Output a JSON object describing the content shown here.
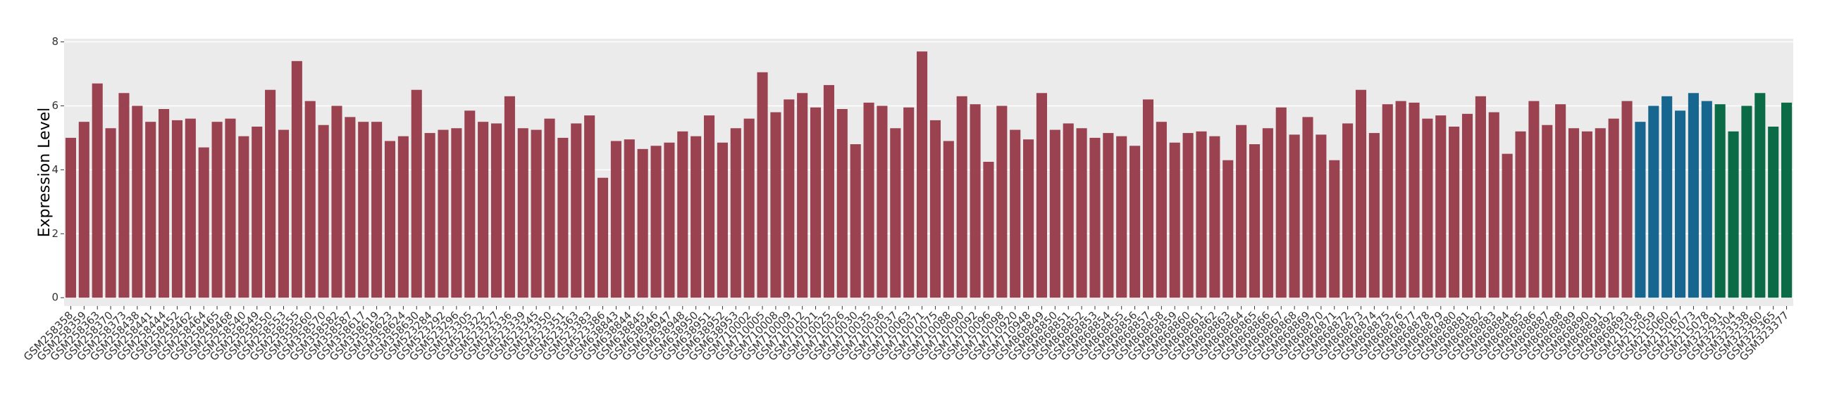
{
  "chart_data": {
    "type": "bar",
    "y_label": "Expression Level",
    "categories": [
      "GSM258358",
      "GSM258359",
      "GSM258363",
      "GSM258370",
      "GSM258373",
      "GSM258438",
      "GSM258441",
      "GSM258444",
      "GSM258452",
      "GSM258462",
      "GSM258464",
      "GSM258465",
      "GSM258468",
      "GSM258540",
      "GSM258549",
      "GSM258550",
      "GSM258553",
      "GSM258555",
      "GSM358560",
      "GSM358570",
      "GSM358582",
      "GSM358587",
      "GSM358617",
      "GSM358619",
      "GSM358623",
      "GSM358624",
      "GSM358630",
      "GSM523284",
      "GSM523292",
      "GSM523296",
      "GSM523305",
      "GSM523322",
      "GSM523327",
      "GSM523336",
      "GSM523339",
      "GSM523345",
      "GSM523350",
      "GSM523351",
      "GSM523363",
      "GSM523383",
      "GSM523386",
      "GSM638843",
      "GSM638844",
      "GSM638845",
      "GSM638946",
      "GSM638947",
      "GSM638948",
      "GSM638950",
      "GSM638951",
      "GSM638952",
      "GSM638953",
      "GSM710002",
      "GSM710005",
      "GSM710008",
      "GSM710009",
      "GSM710012",
      "GSM710021",
      "GSM710025",
      "GSM710026",
      "GSM710030",
      "GSM710035",
      "GSM710036",
      "GSM710037",
      "GSM710063",
      "GSM710071",
      "GSM710075",
      "GSM710088",
      "GSM710090",
      "GSM710092",
      "GSM710096",
      "GSM710098",
      "GSM710920",
      "GSM710948",
      "GSM868849",
      "GSM868850",
      "GSM868851",
      "GSM868852",
      "GSM868853",
      "GSM868854",
      "GSM868855",
      "GSM868856",
      "GSM868857",
      "GSM868858",
      "GSM868859",
      "GSM868860",
      "GSM868861",
      "GSM868862",
      "GSM868863",
      "GSM868864",
      "GSM868865",
      "GSM868866",
      "GSM868867",
      "GSM868868",
      "GSM868869",
      "GSM868870",
      "GSM868871",
      "GSM868872",
      "GSM868873",
      "GSM868874",
      "GSM868875",
      "GSM868876",
      "GSM868877",
      "GSM868878",
      "GSM868879",
      "GSM868880",
      "GSM868881",
      "GSM868882",
      "GSM868883",
      "GSM868884",
      "GSM868885",
      "GSM868886",
      "GSM868887",
      "GSM868888",
      "GSM868889",
      "GSM868890",
      "GSM868891",
      "GSM868892",
      "GSM868893",
      "GSM215058",
      "GSM215059",
      "GSM215060",
      "GSM215067",
      "GSM215073",
      "GSM215078",
      "GSM323291",
      "GSM323304",
      "GSM323338",
      "GSM323360",
      "GSM323365",
      "GSM323377"
    ],
    "values": [
      5.0,
      5.5,
      6.7,
      5.3,
      6.4,
      6.0,
      5.5,
      5.9,
      5.55,
      5.6,
      4.7,
      5.5,
      5.6,
      5.05,
      5.35,
      6.5,
      5.25,
      7.4,
      6.15,
      5.4,
      6.0,
      5.65,
      5.5,
      5.5,
      4.9,
      5.05,
      6.5,
      5.15,
      5.25,
      5.3,
      5.85,
      5.5,
      5.45,
      6.3,
      5.3,
      5.25,
      5.6,
      5.0,
      5.45,
      5.7,
      3.75,
      4.9,
      4.95,
      4.65,
      4.75,
      4.85,
      5.2,
      5.05,
      5.7,
      4.85,
      5.3,
      5.6,
      7.05,
      5.8,
      6.2,
      6.4,
      5.95,
      6.65,
      5.9,
      4.8,
      6.1,
      6.0,
      5.3,
      5.95,
      7.7,
      5.55,
      4.9,
      6.3,
      6.05,
      4.25,
      6.0,
      5.25,
      4.95,
      6.4,
      5.25,
      5.45,
      5.3,
      5.0,
      5.15,
      5.05,
      4.75,
      6.2,
      5.5,
      4.85,
      5.15,
      5.2,
      5.05,
      4.3,
      5.4,
      4.8,
      5.3,
      5.95,
      5.1,
      5.65,
      5.1,
      4.3,
      5.45,
      6.5,
      5.15,
      6.05,
      6.15,
      6.1,
      5.6,
      5.7,
      5.35,
      5.75,
      6.3,
      5.8,
      4.5,
      5.2,
      6.15,
      5.4,
      6.05,
      5.3,
      5.2,
      5.3,
      5.6,
      6.15,
      5.5,
      6.0,
      6.3,
      5.85,
      6.4,
      6.15,
      6.05,
      5.2,
      6.0,
      6.4,
      5.35,
      6.1
    ],
    "colors": [
      "#9b4251",
      "#9b4251",
      "#9b4251",
      "#9b4251",
      "#9b4251",
      "#9b4251",
      "#9b4251",
      "#9b4251",
      "#9b4251",
      "#9b4251",
      "#9b4251",
      "#9b4251",
      "#9b4251",
      "#9b4251",
      "#9b4251",
      "#9b4251",
      "#9b4251",
      "#9b4251",
      "#9b4251",
      "#9b4251",
      "#9b4251",
      "#9b4251",
      "#9b4251",
      "#9b4251",
      "#9b4251",
      "#9b4251",
      "#9b4251",
      "#9b4251",
      "#9b4251",
      "#9b4251",
      "#9b4251",
      "#9b4251",
      "#9b4251",
      "#9b4251",
      "#9b4251",
      "#9b4251",
      "#9b4251",
      "#9b4251",
      "#9b4251",
      "#9b4251",
      "#9b4251",
      "#9b4251",
      "#9b4251",
      "#9b4251",
      "#9b4251",
      "#9b4251",
      "#9b4251",
      "#9b4251",
      "#9b4251",
      "#9b4251",
      "#9b4251",
      "#9b4251",
      "#9b4251",
      "#9b4251",
      "#9b4251",
      "#9b4251",
      "#9b4251",
      "#9b4251",
      "#9b4251",
      "#9b4251",
      "#9b4251",
      "#9b4251",
      "#9b4251",
      "#9b4251",
      "#9b4251",
      "#9b4251",
      "#9b4251",
      "#9b4251",
      "#9b4251",
      "#9b4251",
      "#9b4251",
      "#9b4251",
      "#9b4251",
      "#9b4251",
      "#9b4251",
      "#9b4251",
      "#9b4251",
      "#9b4251",
      "#9b4251",
      "#9b4251",
      "#9b4251",
      "#9b4251",
      "#9b4251",
      "#9b4251",
      "#9b4251",
      "#9b4251",
      "#9b4251",
      "#9b4251",
      "#9b4251",
      "#9b4251",
      "#9b4251",
      "#9b4251",
      "#9b4251",
      "#9b4251",
      "#9b4251",
      "#9b4251",
      "#9b4251",
      "#9b4251",
      "#9b4251",
      "#9b4251",
      "#9b4251",
      "#9b4251",
      "#9b4251",
      "#9b4251",
      "#9b4251",
      "#9b4251",
      "#9b4251",
      "#9b4251",
      "#9b4251",
      "#9b4251",
      "#9b4251",
      "#9b4251",
      "#9b4251",
      "#9b4251",
      "#9b4251",
      "#9b4251",
      "#9b4251",
      "#9b4251",
      "#17668f",
      "#17668f",
      "#17668f",
      "#17668f",
      "#17668f",
      "#17668f",
      "#0b6b46",
      "#0b6b46",
      "#0b6b46",
      "#0b6b46",
      "#0b6b46",
      "#0b6b46"
    ],
    "ylim": [
      -0.26,
      8.1
    ],
    "yticks": [
      0,
      2,
      4,
      6,
      8
    ],
    "grid": true
  }
}
